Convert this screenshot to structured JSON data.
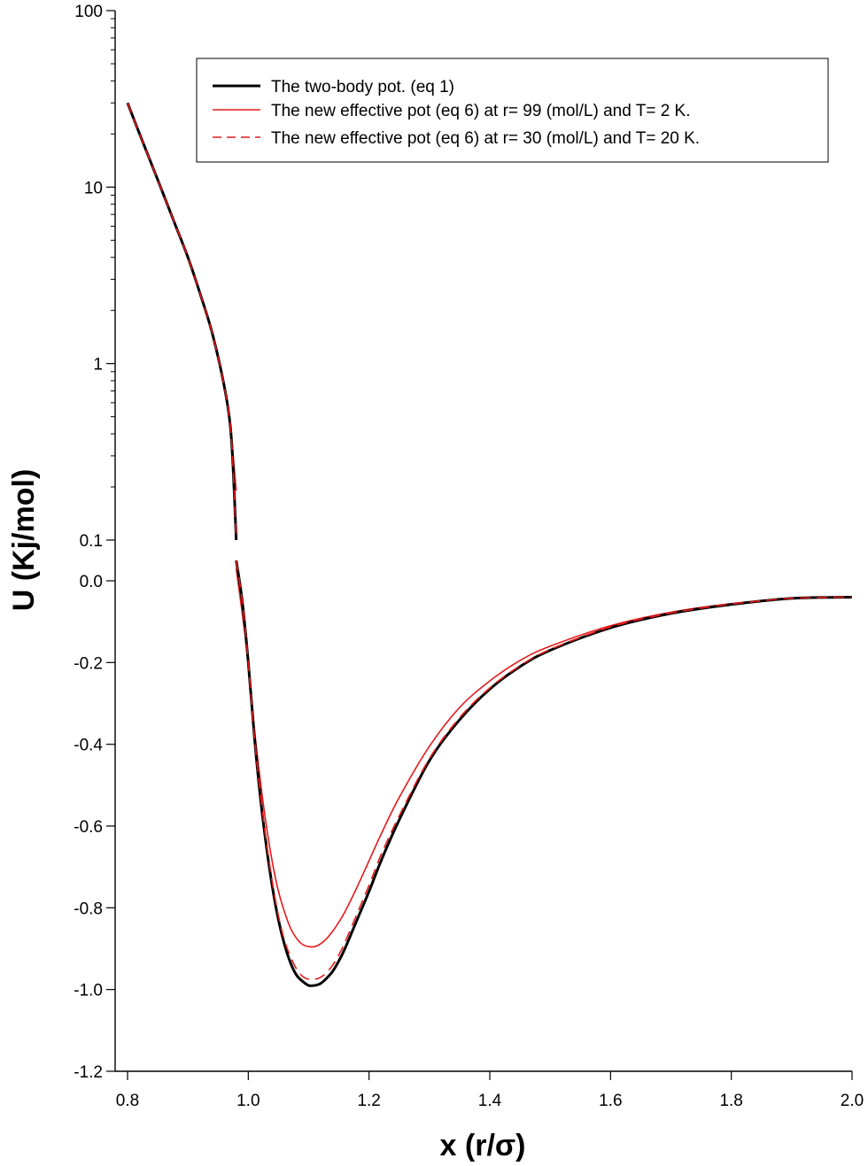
{
  "chart_data": {
    "type": "line",
    "xlabel": "x (r/σ)",
    "ylabel": "U (Kj/mol)",
    "xlim": [
      0.8,
      2.0
    ],
    "ylim_upper_log": [
      0.1,
      100
    ],
    "ylim_lower_linear": [
      -1.2,
      0.0
    ],
    "x_tick_labels": [
      "0.8",
      "1.0",
      "1.2",
      "1.4",
      "1.6",
      "1.8",
      "2.0"
    ],
    "y_upper_tick_labels": [
      "100",
      "10",
      "1",
      "0.1"
    ],
    "y_lower_tick_labels": [
      "0.0",
      "-0.2",
      "-0.4",
      "-0.6",
      "-0.8",
      "-1.0",
      "-1.2"
    ],
    "grid": false,
    "legend_position": "top-right",
    "series": [
      {
        "name": "The two-body pot. (eq 1)",
        "color": "#000000",
        "style": "solid-thick",
        "points": [
          [
            0.8,
            30
          ],
          [
            0.82,
            20
          ],
          [
            0.85,
            11
          ],
          [
            0.88,
            6
          ],
          [
            0.9,
            4
          ],
          [
            0.92,
            2.5
          ],
          [
            0.94,
            1.5
          ],
          [
            0.96,
            0.75
          ],
          [
            0.97,
            0.45
          ],
          [
            0.975,
            0.25
          ],
          [
            0.98,
            0.1
          ],
          [
            0.98,
            0.05
          ],
          [
            0.99,
            -0.05
          ],
          [
            1.0,
            -0.2
          ],
          [
            1.01,
            -0.38
          ],
          [
            1.02,
            -0.53
          ],
          [
            1.03,
            -0.65
          ],
          [
            1.04,
            -0.75
          ],
          [
            1.05,
            -0.83
          ],
          [
            1.06,
            -0.89
          ],
          [
            1.07,
            -0.935
          ],
          [
            1.08,
            -0.965
          ],
          [
            1.09,
            -0.98
          ],
          [
            1.1,
            -0.99
          ],
          [
            1.11,
            -0.99
          ],
          [
            1.12,
            -0.985
          ],
          [
            1.13,
            -0.972
          ],
          [
            1.14,
            -0.955
          ],
          [
            1.15,
            -0.93
          ],
          [
            1.16,
            -0.9
          ],
          [
            1.18,
            -0.83
          ],
          [
            1.2,
            -0.76
          ],
          [
            1.22,
            -0.685
          ],
          [
            1.25,
            -0.585
          ],
          [
            1.3,
            -0.44
          ],
          [
            1.35,
            -0.34
          ],
          [
            1.4,
            -0.265
          ],
          [
            1.45,
            -0.21
          ],
          [
            1.5,
            -0.17
          ],
          [
            1.6,
            -0.115
          ],
          [
            1.7,
            -0.08
          ],
          [
            1.8,
            -0.058
          ],
          [
            1.9,
            -0.043
          ],
          [
            2.0,
            -0.04
          ]
        ]
      },
      {
        "name": "The new effective pot (eq 6) at r= 99 (mol/L) and T= 2 K.",
        "color": "#e41a1c",
        "style": "solid",
        "points": [
          [
            0.8,
            30
          ],
          [
            0.82,
            20
          ],
          [
            0.85,
            11
          ],
          [
            0.88,
            6
          ],
          [
            0.9,
            4
          ],
          [
            0.92,
            2.5
          ],
          [
            0.94,
            1.5
          ],
          [
            0.96,
            0.75
          ],
          [
            0.97,
            0.45
          ],
          [
            0.975,
            0.3
          ],
          [
            0.98,
            0.19
          ],
          [
            0.98,
            0.03
          ],
          [
            0.99,
            -0.08
          ],
          [
            1.0,
            -0.2
          ],
          [
            1.01,
            -0.36
          ],
          [
            1.02,
            -0.49
          ],
          [
            1.03,
            -0.6
          ],
          [
            1.04,
            -0.69
          ],
          [
            1.05,
            -0.76
          ],
          [
            1.06,
            -0.81
          ],
          [
            1.07,
            -0.85
          ],
          [
            1.08,
            -0.875
          ],
          [
            1.09,
            -0.89
          ],
          [
            1.1,
            -0.895
          ],
          [
            1.11,
            -0.895
          ],
          [
            1.12,
            -0.888
          ],
          [
            1.13,
            -0.875
          ],
          [
            1.14,
            -0.857
          ],
          [
            1.15,
            -0.835
          ],
          [
            1.16,
            -0.81
          ],
          [
            1.18,
            -0.75
          ],
          [
            1.2,
            -0.685
          ],
          [
            1.22,
            -0.62
          ],
          [
            1.25,
            -0.53
          ],
          [
            1.3,
            -0.405
          ],
          [
            1.35,
            -0.31
          ],
          [
            1.4,
            -0.245
          ],
          [
            1.45,
            -0.195
          ],
          [
            1.5,
            -0.16
          ],
          [
            1.6,
            -0.11
          ],
          [
            1.7,
            -0.077
          ],
          [
            1.8,
            -0.056
          ],
          [
            1.9,
            -0.043
          ],
          [
            2.0,
            -0.04
          ]
        ]
      },
      {
        "name": "The new effective pot (eq 6) at r= 30 (mol/L) and T= 20 K.",
        "color": "#e41a1c",
        "style": "dashed",
        "points": [
          [
            0.8,
            30
          ],
          [
            0.82,
            20
          ],
          [
            0.85,
            11
          ],
          [
            0.88,
            6
          ],
          [
            0.9,
            4
          ],
          [
            0.92,
            2.5
          ],
          [
            0.94,
            1.5
          ],
          [
            0.96,
            0.75
          ],
          [
            0.97,
            0.45
          ],
          [
            0.975,
            0.25
          ],
          [
            0.98,
            0.1
          ],
          [
            0.98,
            0.05
          ],
          [
            0.99,
            -0.05
          ],
          [
            1.0,
            -0.2
          ],
          [
            1.01,
            -0.38
          ],
          [
            1.02,
            -0.52
          ],
          [
            1.03,
            -0.64
          ],
          [
            1.04,
            -0.74
          ],
          [
            1.05,
            -0.82
          ],
          [
            1.06,
            -0.88
          ],
          [
            1.07,
            -0.92
          ],
          [
            1.08,
            -0.95
          ],
          [
            1.09,
            -0.968
          ],
          [
            1.1,
            -0.975
          ],
          [
            1.11,
            -0.975
          ],
          [
            1.12,
            -0.97
          ],
          [
            1.13,
            -0.958
          ],
          [
            1.14,
            -0.94
          ],
          [
            1.15,
            -0.915
          ],
          [
            1.16,
            -0.885
          ],
          [
            1.18,
            -0.815
          ],
          [
            1.2,
            -0.745
          ],
          [
            1.22,
            -0.67
          ],
          [
            1.25,
            -0.575
          ],
          [
            1.3,
            -0.435
          ],
          [
            1.35,
            -0.335
          ],
          [
            1.4,
            -0.262
          ],
          [
            1.45,
            -0.208
          ],
          [
            1.5,
            -0.168
          ],
          [
            1.6,
            -0.113
          ],
          [
            1.7,
            -0.079
          ],
          [
            1.8,
            -0.057
          ],
          [
            1.9,
            -0.043
          ],
          [
            2.0,
            -0.04
          ]
        ]
      }
    ]
  }
}
